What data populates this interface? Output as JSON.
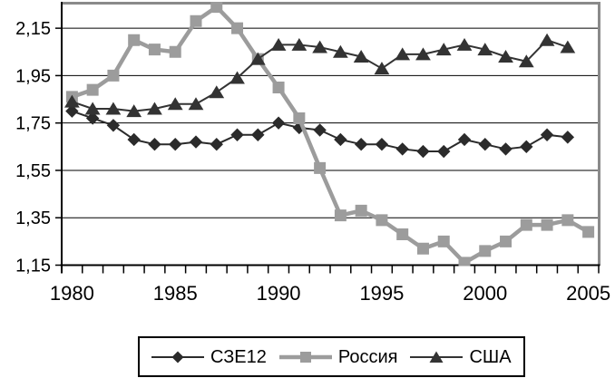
{
  "figure": {
    "background": "#ffffff",
    "plot_border_color": "#8a8a8a",
    "axis_color": "#000000",
    "gridline_color": "#000000"
  },
  "chart_data": {
    "type": "line",
    "title": "",
    "xlabel": "",
    "ylabel": "",
    "grid": "horizontal",
    "legend_position": "bottom",
    "decimal_separator": ",",
    "ylim": [
      1.15,
      2.25
    ],
    "categories": [
      1980,
      1981,
      1982,
      1983,
      1984,
      1985,
      1986,
      1987,
      1988,
      1989,
      1990,
      1991,
      1992,
      1993,
      1994,
      1995,
      1996,
      1997,
      1998,
      1999,
      2000,
      2001,
      2002,
      2003,
      2004,
      2005
    ],
    "yticks": [
      {
        "value": 2.15,
        "label": "2,15"
      },
      {
        "value": 1.95,
        "label": "1,95"
      },
      {
        "value": 1.75,
        "label": "1,75"
      },
      {
        "value": 1.55,
        "label": "1,55"
      },
      {
        "value": 1.35,
        "label": "1,35"
      },
      {
        "value": 1.15,
        "label": "1,15"
      }
    ],
    "xticks": [
      {
        "index": 0,
        "label": "1980"
      },
      {
        "index": 5,
        "label": "1985"
      },
      {
        "index": 10,
        "label": "1990"
      },
      {
        "index": 15,
        "label": "1995"
      },
      {
        "index": 20,
        "label": "2000"
      },
      {
        "index": 25,
        "label": "2005"
      }
    ],
    "series": [
      {
        "id": "sze12",
        "name": "СЗЕ12",
        "marker": "diamond",
        "color": "#2b2b2b",
        "line_width": 2,
        "values": [
          1.8,
          1.77,
          1.74,
          1.68,
          1.66,
          1.66,
          1.67,
          1.66,
          1.7,
          1.7,
          1.75,
          1.73,
          1.72,
          1.68,
          1.66,
          1.66,
          1.64,
          1.63,
          1.63,
          1.68,
          1.66,
          1.64,
          1.65,
          1.7,
          1.69
        ]
      },
      {
        "id": "russia",
        "name": "Россия",
        "marker": "square",
        "color": "#9c9c9c",
        "line_width": 4.5,
        "values": [
          1.86,
          1.89,
          1.95,
          2.1,
          2.06,
          2.05,
          2.18,
          2.24,
          2.15,
          2.02,
          1.9,
          1.77,
          1.56,
          1.36,
          1.38,
          1.34,
          1.28,
          1.22,
          1.25,
          1.16,
          1.21,
          1.25,
          1.32,
          1.32,
          1.34,
          1.29
        ]
      },
      {
        "id": "usa",
        "name": "США",
        "marker": "triangle",
        "color": "#333333",
        "line_width": 2,
        "values": [
          1.84,
          1.81,
          1.81,
          1.8,
          1.81,
          1.83,
          1.83,
          1.88,
          1.94,
          2.02,
          2.08,
          2.08,
          2.07,
          2.05,
          2.03,
          1.98,
          2.04,
          2.04,
          2.06,
          2.08,
          2.06,
          2.03,
          2.01,
          2.1,
          2.07
        ]
      }
    ]
  }
}
